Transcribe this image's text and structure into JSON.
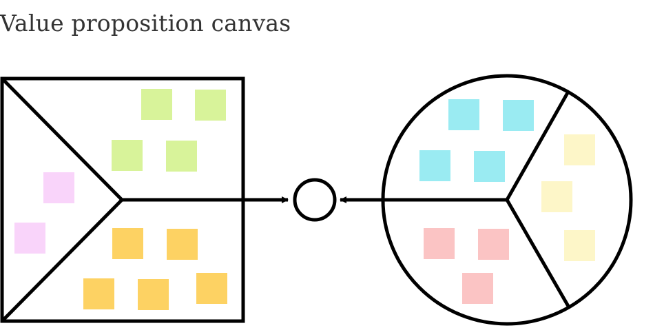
{
  "title": "Value proposition canvas",
  "colors": {
    "stroke": "#000000",
    "pink": "#f9d4fa",
    "green": "#d8f39a",
    "orange": "#fdd263",
    "cyan": "#9aebf2",
    "yellow": "#fdf6c8",
    "rose": "#fbc4c4"
  },
  "value_map": {
    "shape": "square",
    "sections": [
      {
        "name": "products-and-services",
        "note_color": "pink",
        "note_count": 2
      },
      {
        "name": "gain-creators",
        "note_color": "green",
        "note_count": 4
      },
      {
        "name": "pain-relievers",
        "note_color": "orange",
        "note_count": 5
      }
    ]
  },
  "customer_profile": {
    "shape": "circle",
    "sections": [
      {
        "name": "gains",
        "note_color": "cyan",
        "note_count": 4
      },
      {
        "name": "customer-jobs",
        "note_color": "yellow",
        "note_count": 3
      },
      {
        "name": "pains",
        "note_color": "rose",
        "note_count": 3
      }
    ]
  },
  "fit_indicator": {
    "shape": "circle",
    "connectors": 2
  }
}
